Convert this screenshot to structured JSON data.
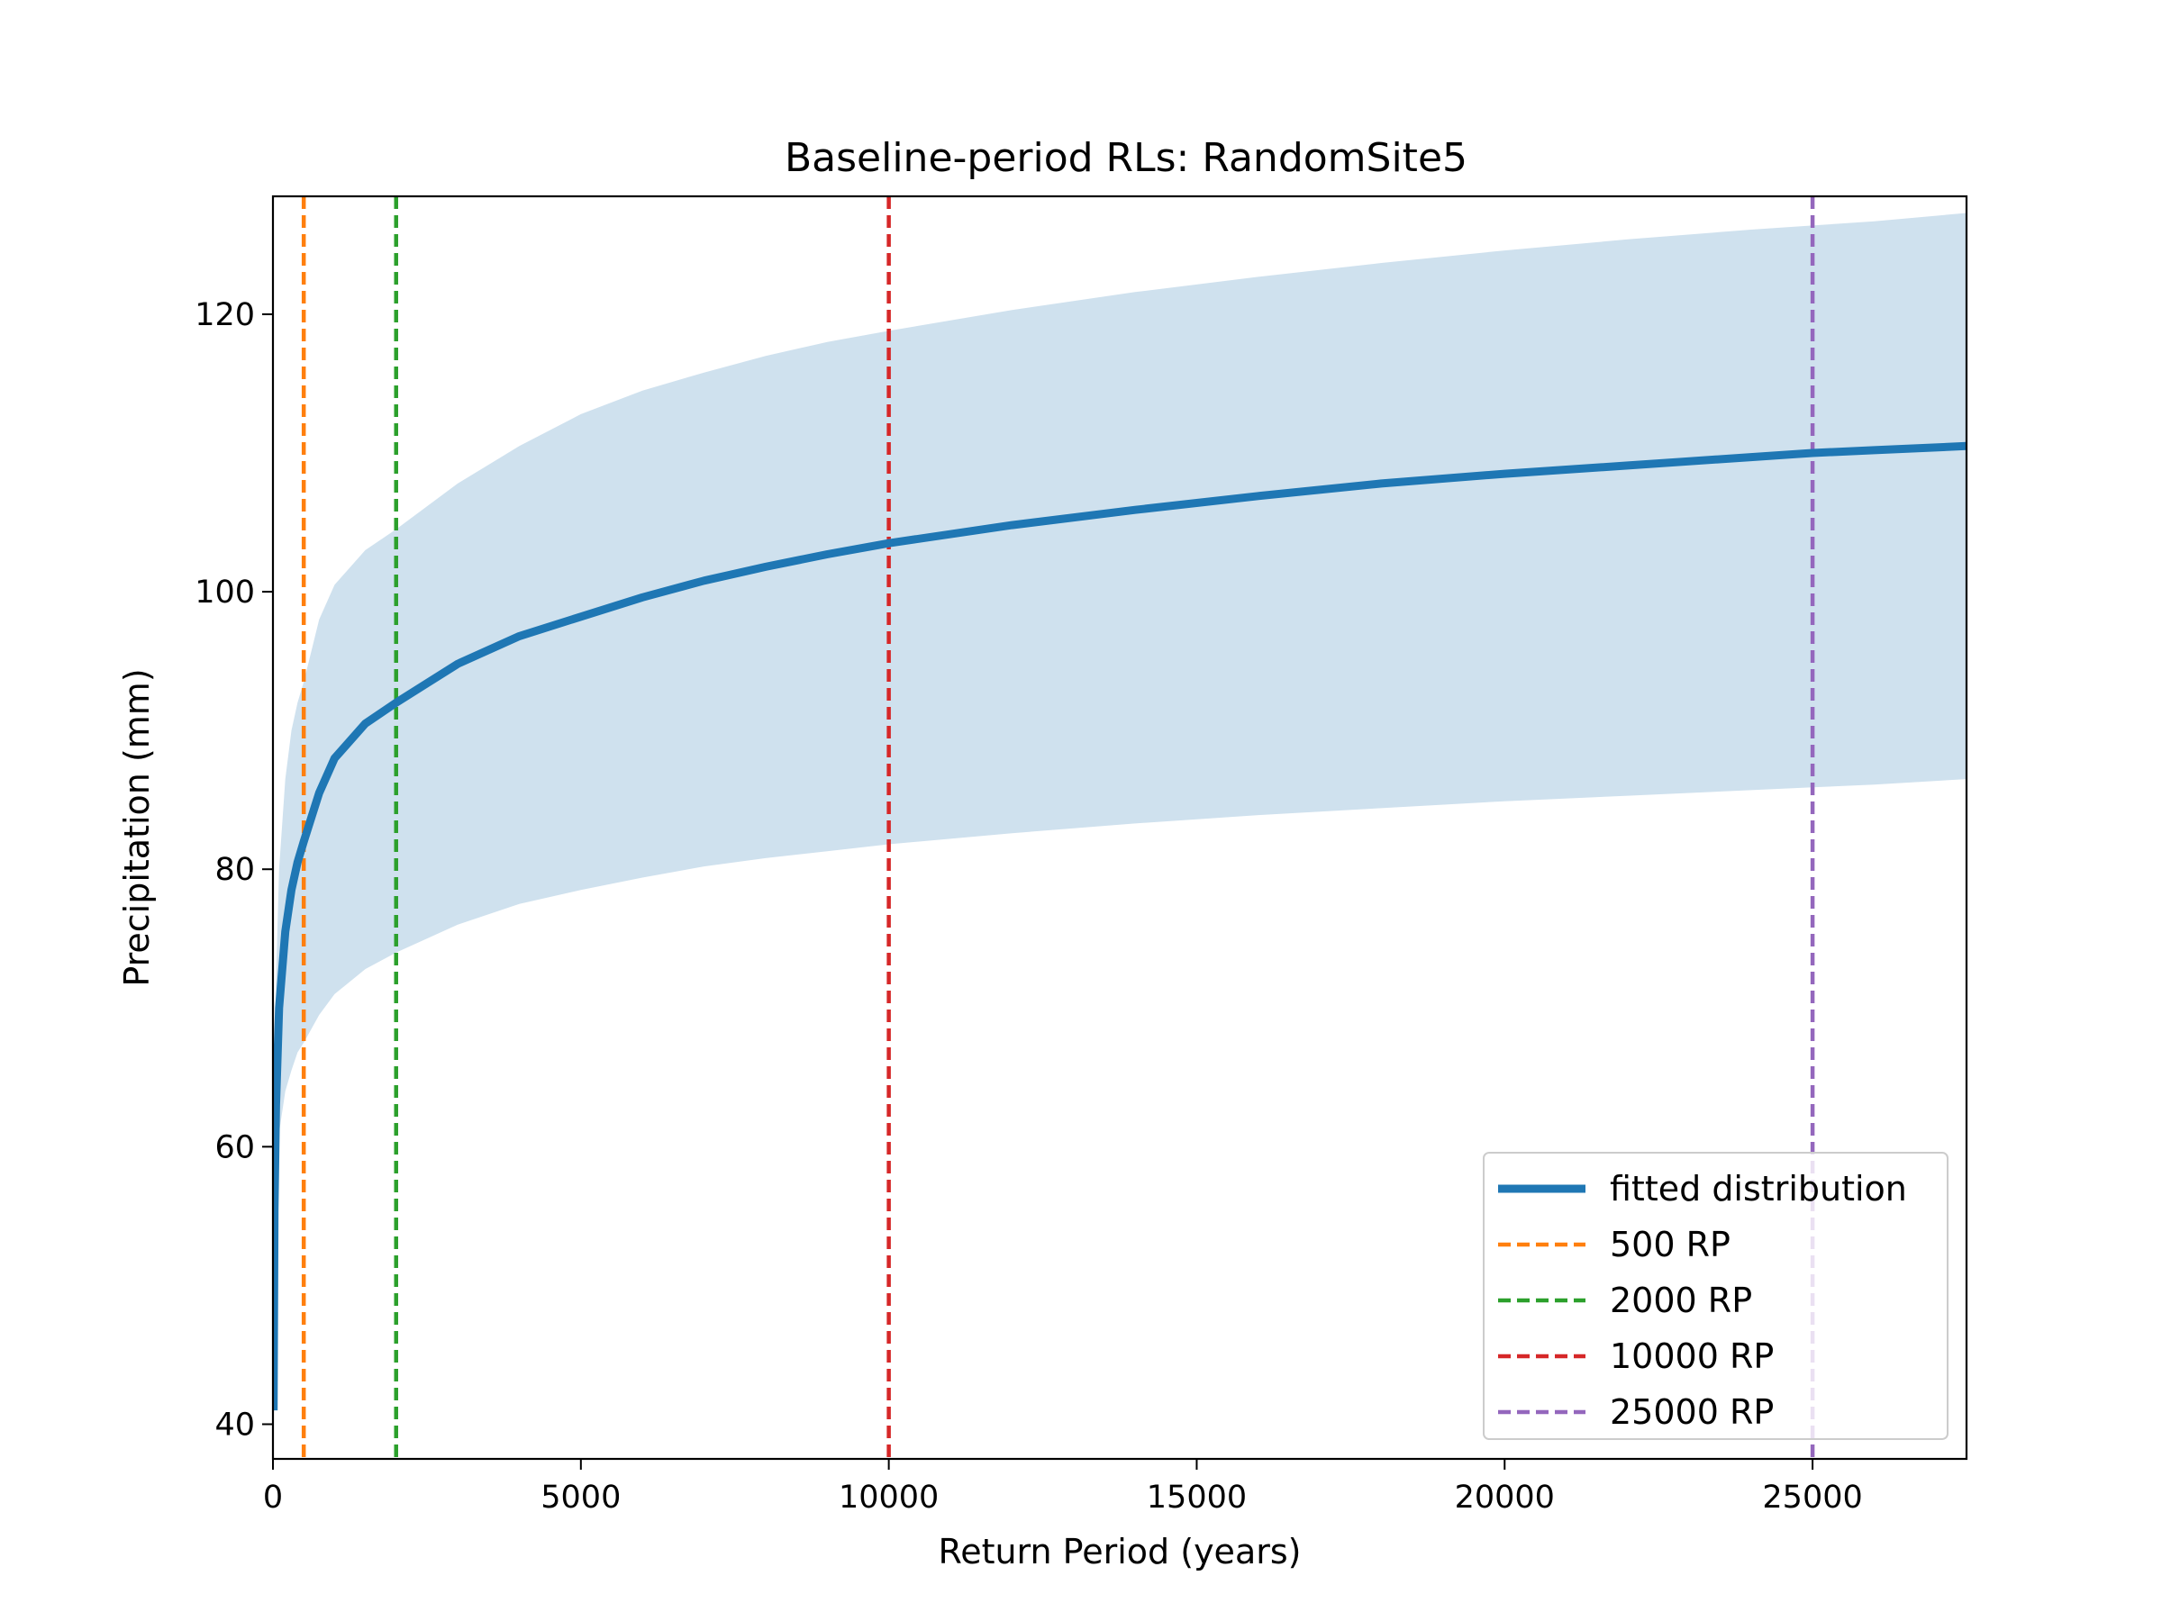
{
  "chart_data": {
    "type": "line",
    "title": "Baseline-period RLs: RandomSite5",
    "xlabel": "Return Period (years)",
    "ylabel": "Precipitation (mm)",
    "xlim": [
      0,
      27500
    ],
    "ylim": [
      37.5,
      128.5
    ],
    "x_ticks": [
      0,
      5000,
      10000,
      15000,
      20000,
      25000
    ],
    "y_ticks": [
      40,
      60,
      80,
      100,
      120
    ],
    "grid": false,
    "legend_position": "lower-right",
    "series": [
      {
        "name": "fitted distribution",
        "kind": "line",
        "color": "#1f77b4",
        "x": [
          10,
          25,
          50,
          100,
          200,
          300,
          400,
          500,
          750,
          1000,
          1500,
          2000,
          3000,
          4000,
          5000,
          6000,
          7000,
          8000,
          9000,
          10000,
          12000,
          14000,
          16000,
          18000,
          20000,
          22000,
          24000,
          25000,
          26000,
          27500
        ],
        "y": [
          41.0,
          55.5,
          63.0,
          70.0,
          75.5,
          78.5,
          80.5,
          82.0,
          85.5,
          88.0,
          90.5,
          92.0,
          94.8,
          96.8,
          98.2,
          99.6,
          100.8,
          101.8,
          102.7,
          103.5,
          104.8,
          105.9,
          106.9,
          107.8,
          108.5,
          109.1,
          109.7,
          110.0,
          110.2,
          110.5
        ]
      },
      {
        "name": "confidence band",
        "kind": "band",
        "color": "#cfe1ee",
        "x": [
          10,
          25,
          50,
          100,
          200,
          300,
          400,
          500,
          750,
          1000,
          1500,
          2000,
          3000,
          4000,
          5000,
          6000,
          7000,
          8000,
          9000,
          10000,
          12000,
          14000,
          16000,
          18000,
          20000,
          22000,
          24000,
          25000,
          26000,
          27500
        ],
        "lower": [
          41.0,
          52.0,
          57.0,
          61.0,
          64.0,
          65.5,
          66.8,
          67.5,
          69.5,
          71.0,
          72.8,
          74.0,
          76.0,
          77.5,
          78.5,
          79.4,
          80.2,
          80.8,
          81.3,
          81.8,
          82.6,
          83.3,
          83.9,
          84.4,
          84.9,
          85.3,
          85.7,
          85.9,
          86.1,
          86.5
        ],
        "upper": [
          41.0,
          62.0,
          72.0,
          80.0,
          86.5,
          90.0,
          92.0,
          93.5,
          98.0,
          100.5,
          103.0,
          104.5,
          107.8,
          110.5,
          112.8,
          114.5,
          115.8,
          117.0,
          118.0,
          118.8,
          120.3,
          121.6,
          122.7,
          123.7,
          124.6,
          125.4,
          126.1,
          126.4,
          126.7,
          127.3
        ]
      }
    ],
    "vlines": [
      {
        "name": "500 RP",
        "x": 500,
        "color": "#ff7f0e"
      },
      {
        "name": "2000 RP",
        "x": 2000,
        "color": "#2ca02c"
      },
      {
        "name": "10000 RP",
        "x": 10000,
        "color": "#d62728"
      },
      {
        "name": "25000 RP",
        "x": 25000,
        "color": "#9467bd"
      }
    ]
  }
}
